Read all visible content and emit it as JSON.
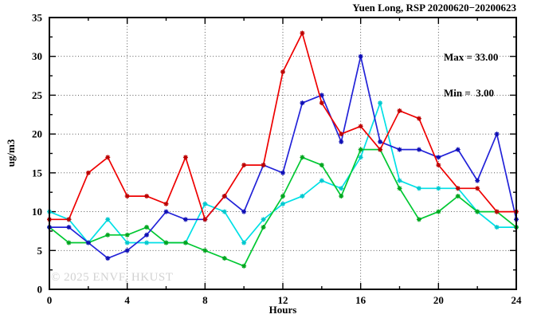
{
  "title": "Yuen Long, RSP 20200620−20200623",
  "annotation": {
    "max_label": "Max = 33.00",
    "min_label": "Min =  3.00",
    "max_value": 33.0,
    "min_value": 3.0
  },
  "watermark": "© 2025 ENVF, HKUST",
  "chart_data": {
    "type": "line",
    "title": "Yuen Long, RSP 20200620−20200623",
    "xlabel": "Hours",
    "ylabel": "ug/m3",
    "xlim": [
      0,
      24
    ],
    "ylim": [
      0,
      35
    ],
    "xticks": [
      0,
      4,
      8,
      12,
      16,
      20,
      24
    ],
    "yticks": [
      0,
      5,
      10,
      15,
      20,
      25,
      30,
      35
    ],
    "x_minor_step": 2,
    "y_minor_step": 2.5,
    "grid_x": [
      4,
      8,
      12,
      16,
      20
    ],
    "grid_y": [
      5,
      10,
      15,
      20,
      25,
      30
    ],
    "grid_style": "dotted",
    "legend_position": "top-right-inside",
    "x": [
      0,
      1,
      2,
      3,
      4,
      5,
      6,
      7,
      8,
      9,
      10,
      11,
      12,
      13,
      14,
      15,
      16,
      17,
      18,
      19,
      20,
      21,
      22,
      23,
      24
    ],
    "series": [
      {
        "name": "series-cyan",
        "color": "#00e0e6",
        "marker_color": "#00c8ce",
        "values": [
          10,
          9,
          6,
          9,
          6,
          6,
          6,
          6,
          11,
          10,
          6,
          9,
          11,
          12,
          14,
          13,
          17,
          24,
          14,
          13,
          13,
          13,
          10,
          8,
          8
        ]
      },
      {
        "name": "series-green",
        "color": "#00c832",
        "marker_color": "#00a51e",
        "values": [
          8,
          6,
          6,
          7,
          7,
          8,
          6,
          6,
          5,
          4,
          3,
          8,
          12,
          17,
          16,
          12,
          18,
          18,
          13,
          9,
          10,
          12,
          10,
          10,
          8
        ]
      },
      {
        "name": "series-blue",
        "color": "#2222d8",
        "marker_color": "#0f0fb4",
        "values": [
          8,
          8,
          6,
          4,
          5,
          7,
          10,
          9,
          9,
          12,
          10,
          16,
          15,
          24,
          25,
          19,
          30,
          19,
          18,
          18,
          17,
          18,
          14,
          20,
          9
        ]
      },
      {
        "name": "series-red",
        "color": "#ee0000",
        "marker_color": "#bb0000",
        "values": [
          9,
          9,
          15,
          17,
          12,
          12,
          11,
          17,
          9,
          12,
          16,
          16,
          28,
          33,
          24,
          20,
          21,
          18,
          23,
          22,
          16,
          13,
          13,
          10,
          10
        ]
      }
    ]
  }
}
